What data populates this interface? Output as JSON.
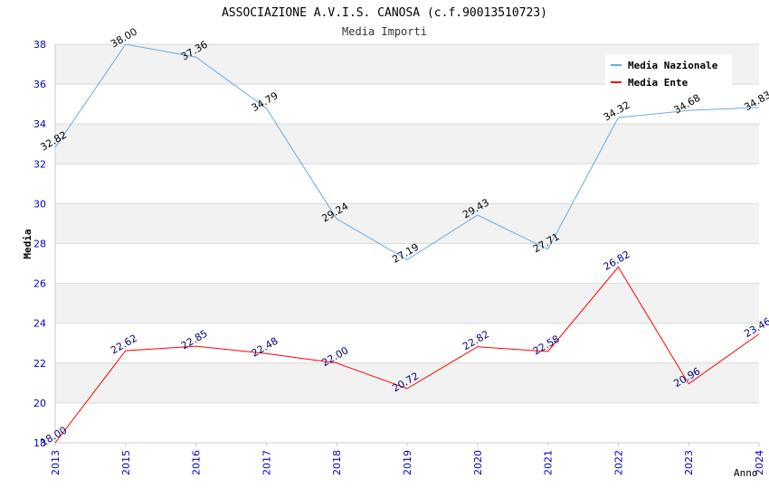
{
  "chart_data": {
    "type": "line",
    "title": "ASSOCIAZIONE A.V.I.S. CANOSA (c.f.90013510723)",
    "subtitle": "Media Importi",
    "xlabel": "Anno",
    "ylabel": "Media",
    "categories": [
      "2013",
      "2015",
      "2016",
      "2017",
      "2018",
      "2019",
      "2020",
      "2021",
      "2022",
      "2023",
      "2024"
    ],
    "ylim": [
      18,
      38
    ],
    "yticks": [
      "18",
      "20",
      "22",
      "24",
      "26",
      "28",
      "30",
      "32",
      "34",
      "36",
      "38"
    ],
    "grid": "horizontal alternating bands",
    "legend_position": "top-right",
    "series": [
      {
        "name": "Media Nazionale",
        "color": "#6aaae4",
        "label_color": "#000000",
        "values": [
          32.82,
          38.0,
          37.36,
          34.79,
          29.24,
          27.19,
          29.43,
          27.71,
          34.32,
          34.68,
          34.83
        ],
        "labels": [
          "32.82",
          "38.00",
          "37.36",
          "34.79",
          "29.24",
          "27.19",
          "29.43",
          "27.71",
          "34.32",
          "34.68",
          "34.83"
        ]
      },
      {
        "name": "Media Ente",
        "color": "#ff0000",
        "label_color": "#000080",
        "values": [
          18.0,
          22.62,
          22.85,
          22.48,
          22.0,
          20.72,
          22.82,
          22.58,
          26.82,
          20.96,
          23.46
        ],
        "labels": [
          "18.00",
          "22.62",
          "22.85",
          "22.48",
          "22.00",
          "20.72",
          "22.82",
          "22.58",
          "26.82",
          "20.96",
          "23.46"
        ]
      }
    ],
    "colors": {
      "band": "#f2f2f2",
      "gridline": "#d9d9d9",
      "axis_tick_text": "#0000cc",
      "title_text": "#000000",
      "subtitle_text": "#333333"
    }
  }
}
